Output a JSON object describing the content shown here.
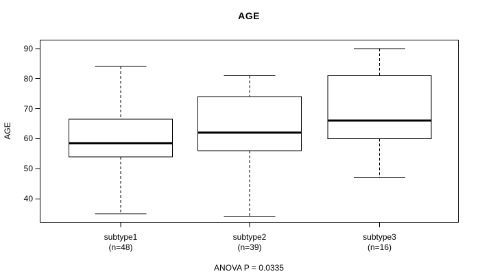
{
  "figure": {
    "title": "AGE",
    "background_color": "#ffffff",
    "line_color": "#000000"
  },
  "chart_data": {
    "type": "boxplot",
    "title": "AGE",
    "xlabel": "",
    "ylabel": "AGE",
    "ylim": [
      32,
      93
    ],
    "y_ticks": [
      40,
      50,
      60,
      70,
      80,
      90
    ],
    "grid": false,
    "legend": "none",
    "annotation": "ANOVA P = 0.0335",
    "categories": [
      "subtype1",
      "subtype2",
      "subtype3"
    ],
    "category_sublabels": [
      "(n=48)",
      "(n=39)",
      "(n=16)"
    ],
    "series": [
      {
        "name": "subtype1",
        "n": 48,
        "whisker_low": 35,
        "q1": 54,
        "median": 58.5,
        "q3": 66.5,
        "whisker_high": 84
      },
      {
        "name": "subtype2",
        "n": 39,
        "whisker_low": 34,
        "q1": 56,
        "median": 62,
        "q3": 74,
        "whisker_high": 81
      },
      {
        "name": "subtype3",
        "n": 16,
        "whisker_low": 47,
        "q1": 60,
        "median": 66,
        "q3": 81,
        "whisker_high": 90
      }
    ]
  }
}
